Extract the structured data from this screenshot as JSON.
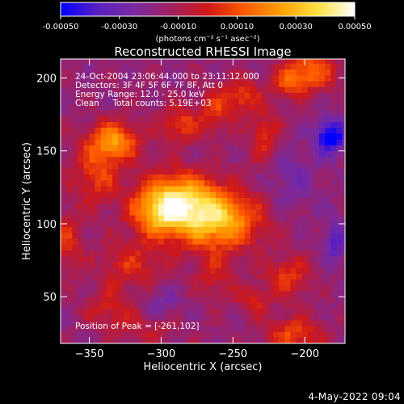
{
  "chart_data": {
    "type": "heatmap",
    "title": "Reconstructed RHESSI Image",
    "xlabel": "Heliocentric X (arcsec)",
    "ylabel": "Heliocentric Y (arcsec)",
    "xlim": [
      -370,
      -172
    ],
    "ylim": [
      18,
      213
    ],
    "xticks": [
      -350,
      -300,
      -250,
      -200
    ],
    "yticks": [
      50,
      100,
      150,
      200
    ],
    "colorbar": {
      "range": [
        -0.0005,
        0.0005
      ],
      "ticks": [
        "-0.00050",
        "-0.00030",
        "-0.00010",
        "0.00010",
        "0.00030",
        "0.00050"
      ],
      "label": "(photons cm⁻² s⁻¹ asec⁻²)",
      "colormap": [
        "#0000ff",
        "#5a1fc2",
        "#7a2aa0",
        "#a02060",
        "#d01818",
        "#ff5a00",
        "#ffa000",
        "#ffe040",
        "#ffffff"
      ]
    },
    "annotations": [
      "24-Oct-2004 23:06:44.000 to 23:11:12.000",
      "Detectors: 3F 4F 5F 6F 7F 8F, Att 0",
      "Energy Range: 12.0 - 25.0 keV",
      "Clean     Total counts: 5.19E+03"
    ],
    "peak_label": "Position of Peak = [-261,102]",
    "peak": {
      "x": -261,
      "y": 102
    },
    "sources": [
      {
        "x": -262,
        "y": 103,
        "sx": 22,
        "sy": 14,
        "amp": 0.00048
      },
      {
        "x": -288,
        "y": 118,
        "sx": 18,
        "sy": 13,
        "amp": 0.0004
      },
      {
        "x": -303,
        "y": 107,
        "sx": 13,
        "sy": 11,
        "amp": 0.0003
      },
      {
        "x": -332,
        "y": 157,
        "sx": 12,
        "sy": 9,
        "amp": 0.00036
      },
      {
        "x": -345,
        "y": 135,
        "sx": 12,
        "sy": 16,
        "amp": 0.00022
      },
      {
        "x": -287,
        "y": 168,
        "sx": 10,
        "sy": 9,
        "amp": 0.00022
      },
      {
        "x": -262,
        "y": 178,
        "sx": 8,
        "sy": 12,
        "amp": 0.0002
      },
      {
        "x": -243,
        "y": 188,
        "sx": 8,
        "sy": 8,
        "amp": 0.00022
      },
      {
        "x": -228,
        "y": 160,
        "sx": 8,
        "sy": 14,
        "amp": 0.0002
      },
      {
        "x": -196,
        "y": 205,
        "sx": 12,
        "sy": 10,
        "amp": 0.0003
      },
      {
        "x": -212,
        "y": 197,
        "sx": 8,
        "sy": 7,
        "amp": 0.0002
      },
      {
        "x": -212,
        "y": 64,
        "sx": 11,
        "sy": 10,
        "amp": 0.00022
      },
      {
        "x": -236,
        "y": 48,
        "sx": 8,
        "sy": 7,
        "amp": 0.00016
      },
      {
        "x": -208,
        "y": 24,
        "sx": 14,
        "sy": 9,
        "amp": 0.00024
      },
      {
        "x": -320,
        "y": 72,
        "sx": 16,
        "sy": 12,
        "amp": 0.00018
      },
      {
        "x": -336,
        "y": 42,
        "sx": 12,
        "sy": 10,
        "amp": 0.00016
      },
      {
        "x": -365,
        "y": 88,
        "sx": 7,
        "sy": 14,
        "amp": 0.00018
      },
      {
        "x": -308,
        "y": 28,
        "sx": 14,
        "sy": 8,
        "amp": 0.00012
      },
      {
        "x": -263,
        "y": 64,
        "sx": 10,
        "sy": 12,
        "amp": 0.00014
      },
      {
        "x": -182,
        "y": 160,
        "sx": 7,
        "sy": 8,
        "amp": -0.0004
      },
      {
        "x": -178,
        "y": 88,
        "sx": 6,
        "sy": 10,
        "amp": -0.0002
      },
      {
        "x": -210,
        "y": 130,
        "sx": 14,
        "sy": 18,
        "amp": -0.0001
      },
      {
        "x": -300,
        "y": 45,
        "sx": 10,
        "sy": 10,
        "amp": -0.0001
      }
    ]
  },
  "footer": {
    "date": "4-May-2022 09:04"
  }
}
